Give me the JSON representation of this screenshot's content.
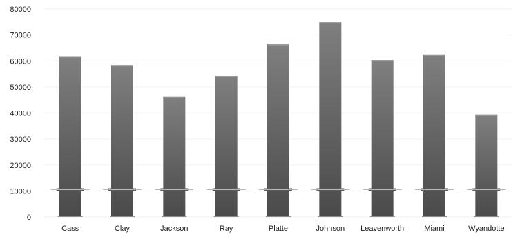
{
  "chart_data": {
    "type": "bar",
    "title": "",
    "xlabel": "",
    "ylabel": "",
    "categories": [
      "Cass",
      "Clay",
      "Jackson",
      "Ray",
      "Platte",
      "Johnson",
      "Leavenworth",
      "Miami",
      "Wyandotte"
    ],
    "values": [
      61800,
      58400,
      46300,
      54200,
      66500,
      74900,
      60300,
      62500,
      39400
    ],
    "ylim": [
      0,
      80000
    ],
    "yticks": [
      "0",
      "10000",
      "20000",
      "30000",
      "40000",
      "50000",
      "60000",
      "70000",
      "80000"
    ],
    "grid": true,
    "legend": "none",
    "colors": {
      "bar_top": "#7f7f7f",
      "bar_bottom": "#4a4a4a",
      "band": "#5a5a5a",
      "band_edge": "#b5b5b5",
      "grid": "#f2f2f2",
      "text": "#222222"
    }
  }
}
